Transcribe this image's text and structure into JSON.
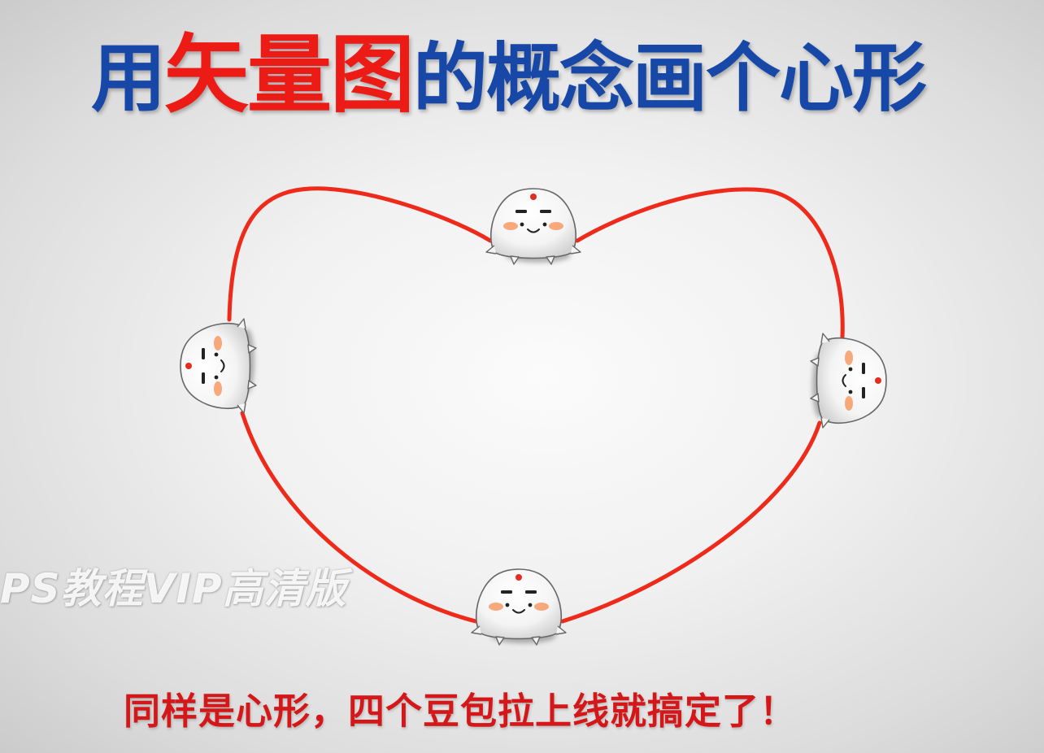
{
  "title": {
    "part1": "用",
    "part2": "矢量图",
    "part3": "的概念画个心形",
    "colors": {
      "blue": "#1748a8",
      "red": "#ec1b16"
    }
  },
  "watermark": "PS教程VIP高清版",
  "caption": "同样是心形，四个豆包拉上线就搞定了！",
  "heart": {
    "stroke_color": "#ee2a1b",
    "anchor_count": 4,
    "anchor_character": "dumpling-mascot"
  }
}
